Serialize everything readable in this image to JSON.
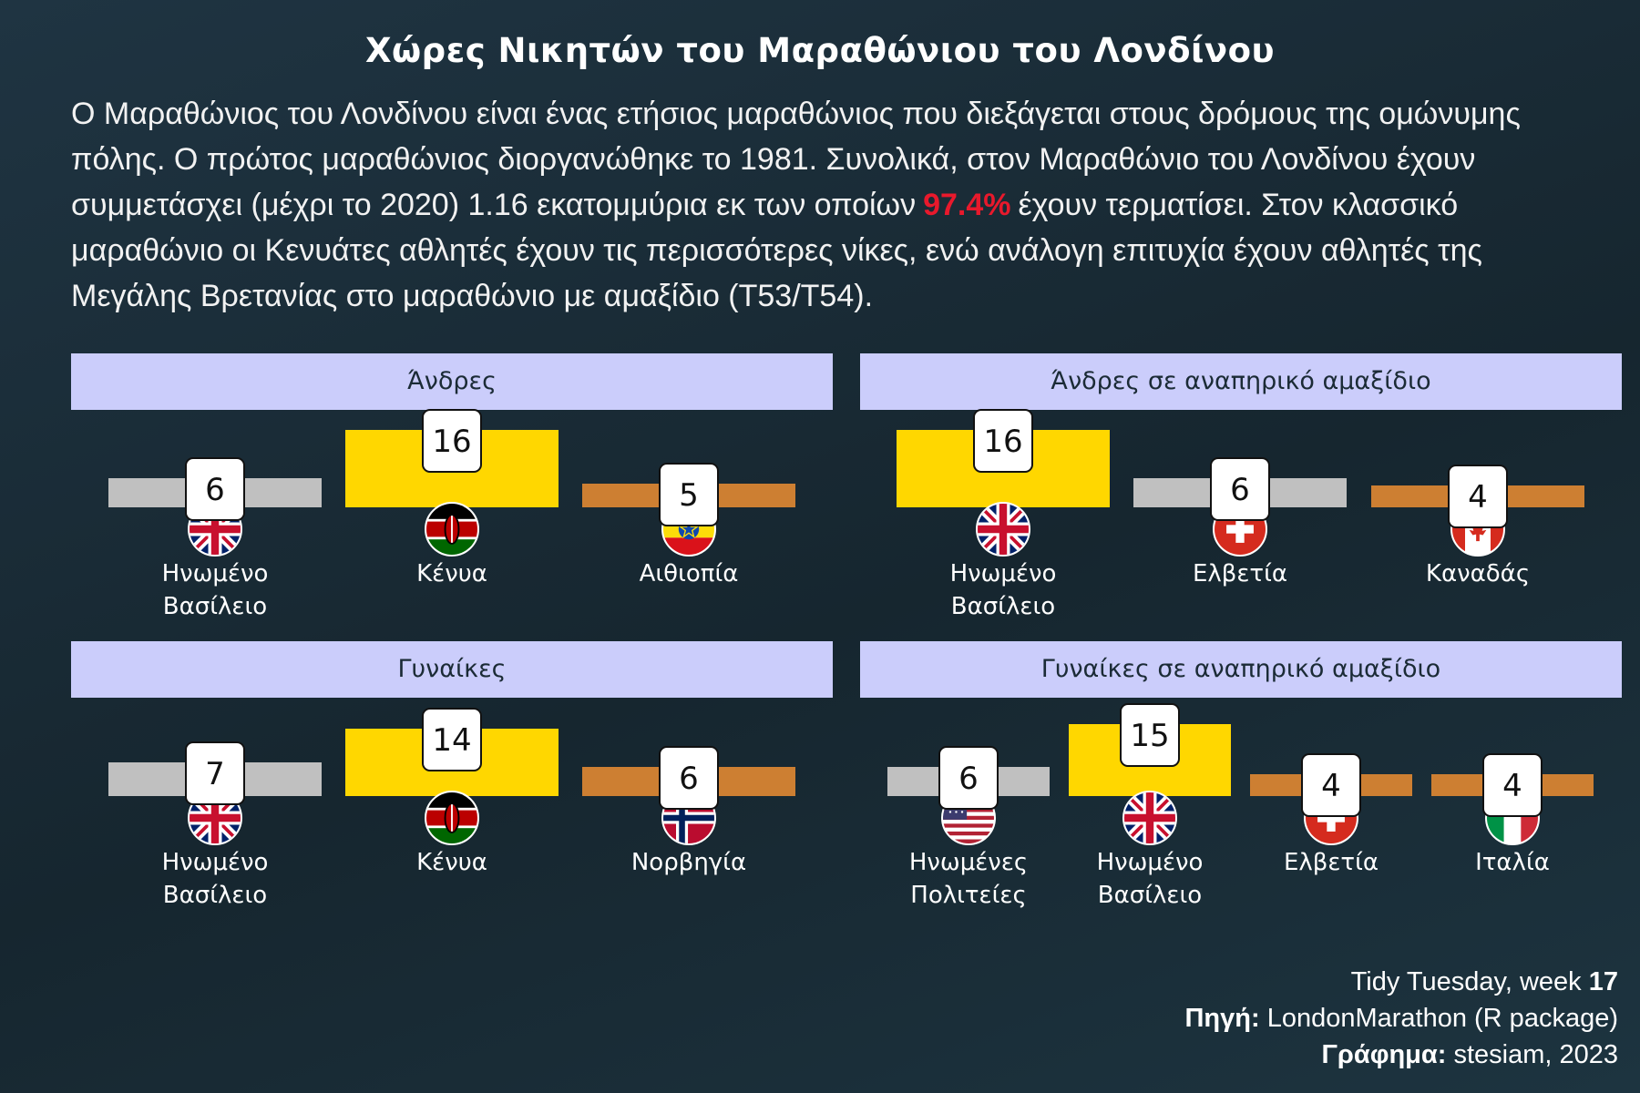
{
  "title": "Χώρες Νικητών του Μαραθώνιου του Λονδίνου",
  "description": {
    "before": "Ο Μαραθώνιος του Λονδίνου είναι ένας ετήσιος μαραθώνιος που διεξάγεται στους δρόμους της ομώνυμης πόλης. Ο πρώτος μαραθώνιος διοργανώθηκε το 1981. Συνολικά, στον Μαραθώνιο του Λονδίνου έχουν συμμετάσχει (μέχρι το 2020) 1.16 εκατομμύρια εκ των οποίων",
    "highlight": "97.4%",
    "after": "έχουν τερματίσει. Στον κλασσικό μαραθώνιο οι Κενυάτες αθλητές έχουν τις περισσότερες νίκες, ενώ ανάλογη επιτυχία έχουν αθλητές της Μεγάλης Βρετανίας στο μαραθώνιο με αμαξίδιο (T53/T54).",
    "highlight_color": "#e8192c"
  },
  "colors": {
    "gold": "#ffd700",
    "silver": "#c0c0c0",
    "bronze": "#cd7f32",
    "header_bg": "#cbcdfb"
  },
  "chart_data": [
    {
      "type": "bar",
      "title": "Άνδρες",
      "categories": [
        "Ηνωμένο Βασίλειο",
        "Κένυα",
        "Αιθιοπία"
      ],
      "values": [
        6,
        16,
        5
      ],
      "flags": [
        "uk",
        "kenya",
        "ethiopia"
      ],
      "bar_colors": [
        "silver",
        "gold",
        "bronze"
      ]
    },
    {
      "type": "bar",
      "title": "Άνδρες σε αναπηρικό αμαξίδιο",
      "categories": [
        "Ηνωμένο Βασίλειο",
        "Ελβετία",
        "Καναδάς"
      ],
      "values": [
        16,
        6,
        4
      ],
      "flags": [
        "uk",
        "switzerland",
        "canada"
      ],
      "bar_colors": [
        "gold",
        "silver",
        "bronze"
      ]
    },
    {
      "type": "bar",
      "title": "Γυναίκες",
      "categories": [
        "Ηνωμένο Βασίλειο",
        "Κένυα",
        "Νορβηγία"
      ],
      "values": [
        7,
        14,
        6
      ],
      "flags": [
        "uk",
        "kenya",
        "norway"
      ],
      "bar_colors": [
        "silver",
        "gold",
        "bronze"
      ]
    },
    {
      "type": "bar",
      "title": "Γυναίκες σε αναπηρικό αμαξίδιο",
      "categories": [
        "Ηνωμένες Πολιτείες",
        "Ηνωμένο Βασίλειο",
        "Ελβετία",
        "Ιταλία"
      ],
      "values": [
        6,
        15,
        4,
        4
      ],
      "flags": [
        "usa",
        "uk",
        "switzerland",
        "italy"
      ],
      "bar_colors": [
        "silver",
        "gold",
        "bronze",
        "bronze"
      ]
    }
  ],
  "credits": {
    "line1_prefix": "Tidy Tuesday, week",
    "line1_bold": "17",
    "line2_bold": "Πηγή:",
    "line2_text": "LondonMarathon (R package)",
    "line3_bold": "Γράφημα:",
    "line3_text": "stesiam, 2023"
  }
}
